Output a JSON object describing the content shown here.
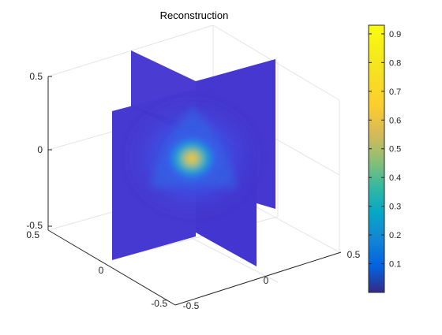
{
  "chart_data": {
    "type": "slice",
    "title": "Reconstruction",
    "xlabel": "",
    "ylabel": "",
    "zlabel": "",
    "xlim": [
      -0.5,
      0.5
    ],
    "ylim": [
      -0.5,
      0.5
    ],
    "zlim": [
      -0.5,
      0.5
    ],
    "x_ticks": [
      "-0.5",
      "0",
      "0.5"
    ],
    "y_ticks": [
      "-0.5",
      "0",
      "0.5"
    ],
    "z_ticks": [
      "-0.5",
      "0",
      "0.5"
    ],
    "slice_planes": [
      "x = 0",
      "y = 0"
    ],
    "peak_value": 0.92,
    "peak_location": [
      0,
      0,
      0
    ],
    "colorbar": {
      "min": 0,
      "max": 0.93,
      "tick_values": [
        0.1,
        0.2,
        0.3,
        0.4,
        0.5,
        0.6,
        0.7,
        0.8,
        0.9
      ],
      "tick_labels": [
        "0.1",
        "0.2",
        "0.3",
        "0.4",
        "0.5",
        "0.6",
        "0.7",
        "0.8",
        "0.9"
      ],
      "colormap": "parula"
    },
    "grid": true,
    "box": true
  }
}
